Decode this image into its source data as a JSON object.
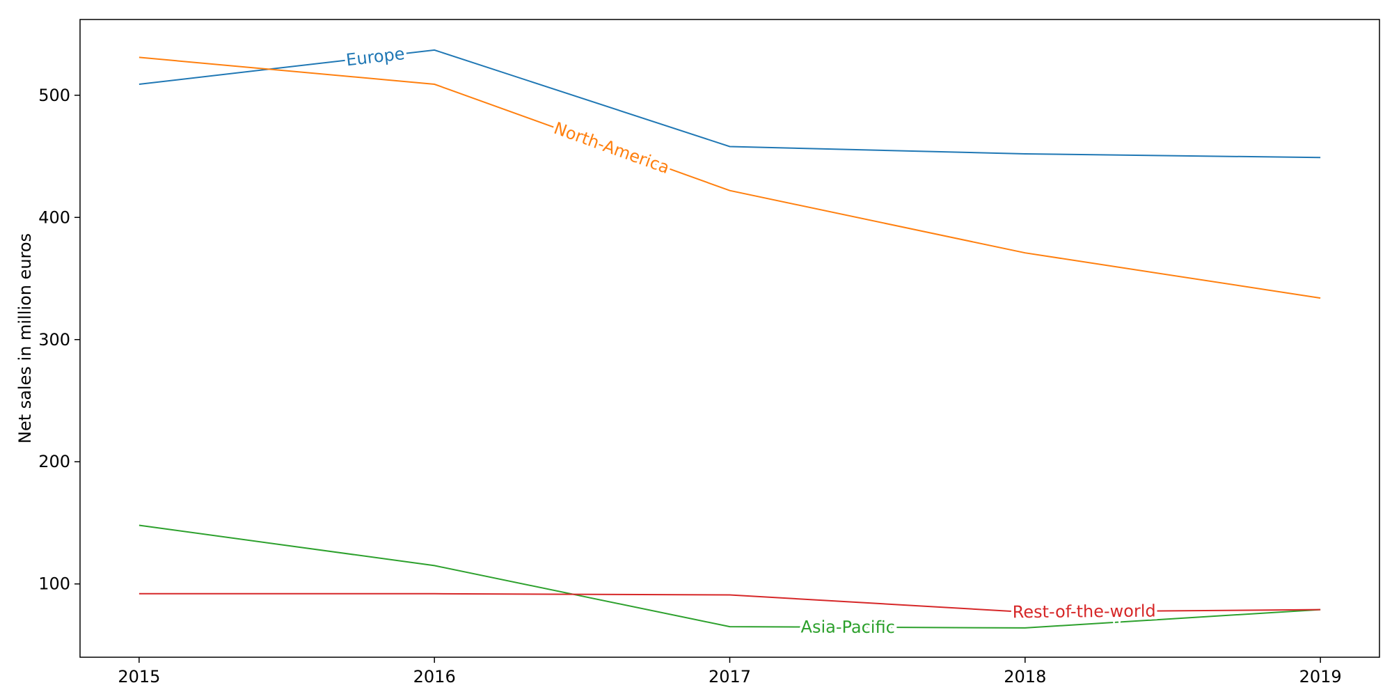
{
  "chart_data": {
    "type": "line",
    "title": "",
    "xlabel": "",
    "ylabel": "Net sales in million euros",
    "x": [
      2015,
      2016,
      2017,
      2018,
      2019
    ],
    "xlim": [
      2014.8,
      2019.2
    ],
    "ylim": [
      40,
      562
    ],
    "xticks": [
      "2015",
      "2016",
      "2017",
      "2018",
      "2019"
    ],
    "yticks": [
      100,
      200,
      300,
      400,
      500
    ],
    "grid": false,
    "legend": "none (inline line labels)",
    "series": [
      {
        "name": "Europe",
        "color": "#1f77b4",
        "values": [
          509,
          537,
          458,
          452,
          449
        ],
        "label_at": 2015.8
      },
      {
        "name": "North-America",
        "color": "#ff7f0e",
        "values": [
          531,
          509,
          422,
          371,
          334
        ],
        "label_at": 2016.6
      },
      {
        "name": "Asia-Pacific",
        "color": "#2ca02c",
        "values": [
          148,
          115,
          65,
          64,
          79
        ],
        "label_at": 2017.4
      },
      {
        "name": "Rest-of-the-world",
        "color": "#d62728",
        "values": [
          92,
          92,
          91,
          77,
          79
        ],
        "label_at": 2018.2
      }
    ]
  }
}
